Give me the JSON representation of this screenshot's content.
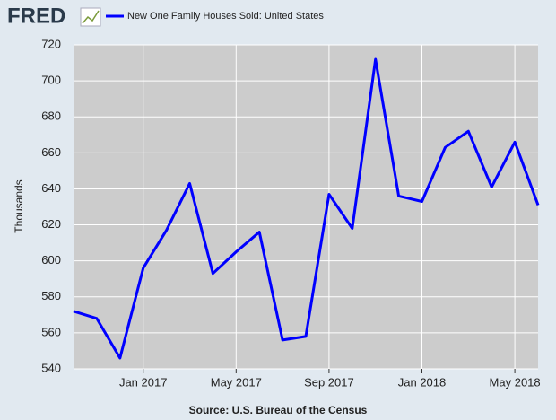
{
  "chart_data": {
    "type": "line",
    "logo": "FRED",
    "series": [
      {
        "name": "New One Family Houses Sold: United States",
        "color": "#0000ff",
        "values": [
          572,
          568,
          546,
          596,
          617,
          643,
          593,
          605,
          616,
          556,
          558,
          637,
          618,
          712,
          636,
          633,
          663,
          672,
          641,
          666,
          631
        ]
      }
    ],
    "x": [
      "2016-10",
      "2016-11",
      "2016-12",
      "2017-01",
      "2017-02",
      "2017-03",
      "2017-04",
      "2017-05",
      "2017-06",
      "2017-07",
      "2017-08",
      "2017-09",
      "2017-10",
      "2017-11",
      "2017-12",
      "2018-01",
      "2018-02",
      "2018-03",
      "2018-04",
      "2018-05",
      "2018-06"
    ],
    "xlim": [
      "2016-10",
      "2018-06"
    ],
    "xticks": [
      {
        "value": "2017-01",
        "label": "Jan 2017"
      },
      {
        "value": "2017-05",
        "label": "May 2017"
      },
      {
        "value": "2017-09",
        "label": "Sep 2017"
      },
      {
        "value": "2018-01",
        "label": "Jan 2018"
      },
      {
        "value": "2018-05",
        "label": "May 2018"
      }
    ],
    "ylabel": "Thousands",
    "ylim": [
      540,
      720
    ],
    "yticks": [
      540,
      560,
      580,
      600,
      620,
      640,
      660,
      680,
      700,
      720
    ],
    "grid": true,
    "source": "Source: U.S. Bureau of the Census"
  }
}
